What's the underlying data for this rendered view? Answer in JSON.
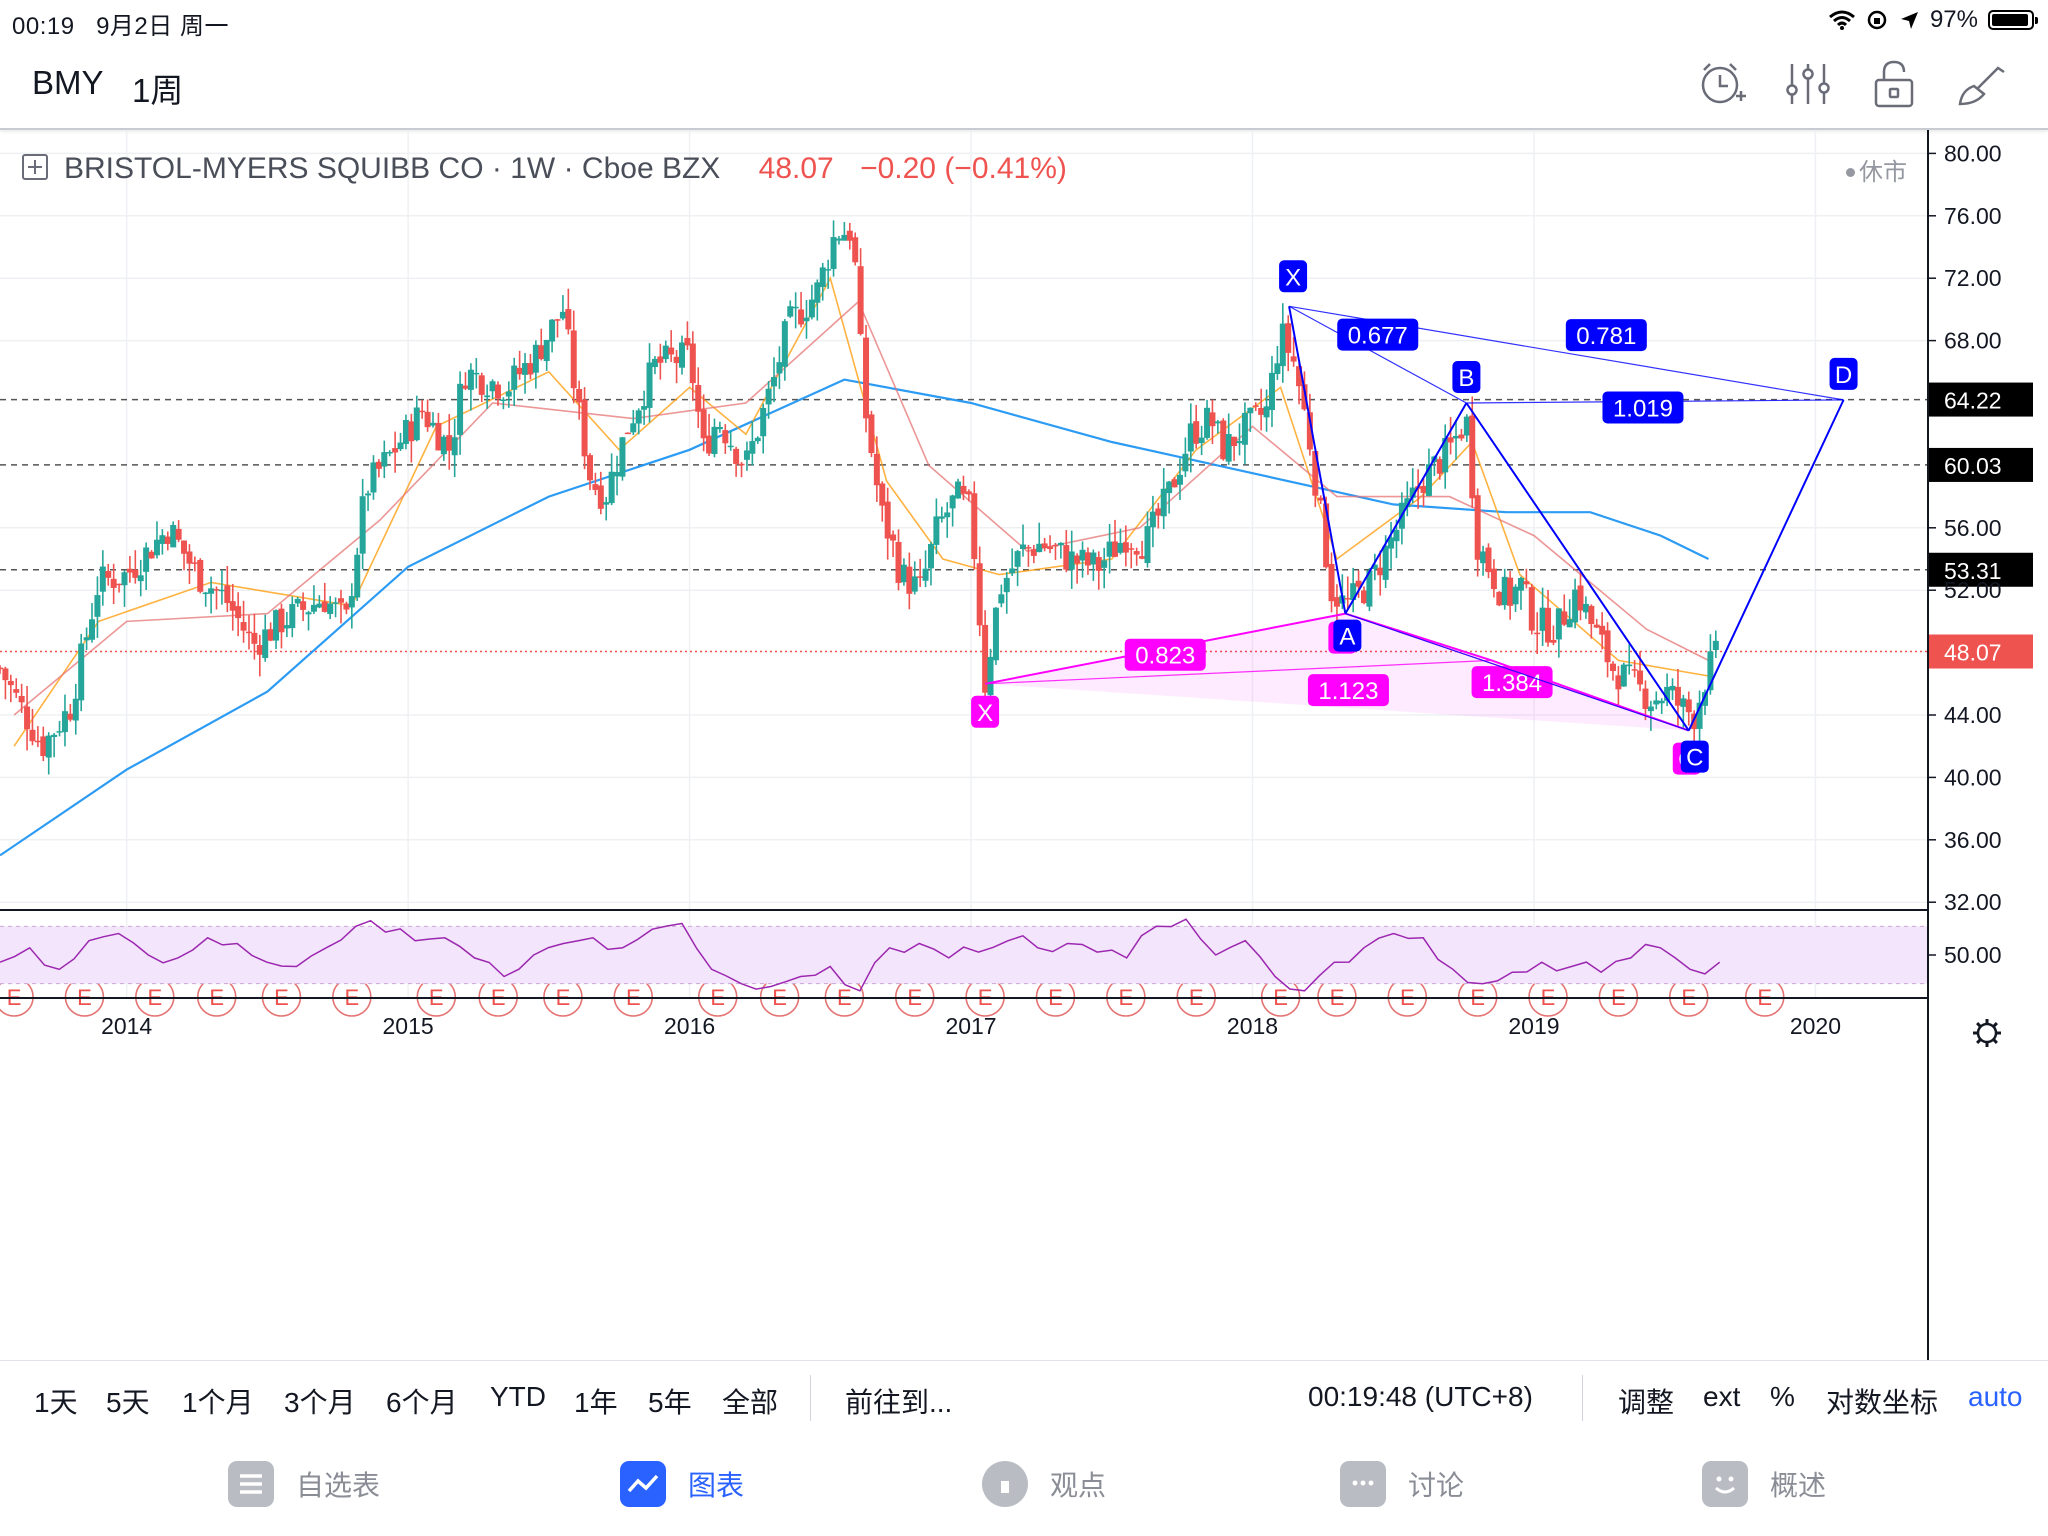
{
  "status_bar": {
    "time": "00:19",
    "date": "9月2日 周一",
    "battery": "97%"
  },
  "toolbar": {
    "symbol": "BMY",
    "interval": "1周",
    "icons": [
      "alarm-add-icon",
      "indicators-icon",
      "lock-icon",
      "drawing-brush-icon"
    ]
  },
  "legend": {
    "name": "BRISTOL-MYERS SQUIBB CO",
    "interval": "1W",
    "exchange": "Cboe BZX",
    "separator": "·",
    "last_price": "48.07",
    "change": "−0.20 (−0.41%)",
    "market_status": "休市"
  },
  "colors": {
    "up": "#26a69a",
    "down": "#ef5350",
    "pattern_xabcd_1": "#ff00ff",
    "pattern_xabcd_2": "#0000ff",
    "ma_long": "#2196f3",
    "ma_short": "#ff9800",
    "rsi": "#9c27b0",
    "rsi_band": "#f3e5fb"
  },
  "chart_data": {
    "type": "candlestick",
    "symbol": "BMY",
    "interval": "1W",
    "y_axis_labels": [
      "80.00",
      "76.00",
      "72.00",
      "68.00",
      "64.22",
      "60.03",
      "56.00",
      "53.31",
      "52.00",
      "48.07",
      "44.00",
      "40.00",
      "36.00",
      "32.00"
    ],
    "y_range": [
      31.5,
      81.5
    ],
    "x_axis_labels": [
      "2014",
      "2015",
      "2016",
      "2017",
      "2018",
      "2019",
      "2020"
    ],
    "x_range": [
      2013.55,
      2020.4
    ],
    "price_lines": [
      {
        "value": 64.22,
        "label": "64.22",
        "style": "dashed-black"
      },
      {
        "value": 60.03,
        "label": "60.03",
        "style": "dashed-black"
      },
      {
        "value": 53.31,
        "label": "53.31",
        "style": "dashed-black"
      },
      {
        "value": 48.07,
        "label": "48.07",
        "style": "last-price-red"
      }
    ],
    "price_path": [
      [
        2013.55,
        47.0
      ],
      [
        2013.7,
        42.0
      ],
      [
        2013.8,
        44.5
      ],
      [
        2013.9,
        52.5
      ],
      [
        2014.0,
        53.0
      ],
      [
        2014.15,
        56.0
      ],
      [
        2014.25,
        53.0
      ],
      [
        2014.35,
        51.5
      ],
      [
        2014.45,
        48.5
      ],
      [
        2014.55,
        50.0
      ],
      [
        2014.7,
        51.5
      ],
      [
        2014.78,
        50.0
      ],
      [
        2014.85,
        58.5
      ],
      [
        2014.95,
        61.0
      ],
      [
        2015.05,
        63.5
      ],
      [
        2015.15,
        61.0
      ],
      [
        2015.2,
        66.0
      ],
      [
        2015.35,
        65.0
      ],
      [
        2015.45,
        67.0
      ],
      [
        2015.55,
        70.0
      ],
      [
        2015.6,
        64.0
      ],
      [
        2015.65,
        59.0
      ],
      [
        2015.7,
        58.0
      ],
      [
        2015.78,
        62.5
      ],
      [
        2015.88,
        66.5
      ],
      [
        2016.0,
        67.0
      ],
      [
        2016.05,
        61.0
      ],
      [
        2016.1,
        63.0
      ],
      [
        2016.2,
        60.0
      ],
      [
        2016.3,
        65.5
      ],
      [
        2016.35,
        69.0
      ],
      [
        2016.45,
        71.0
      ],
      [
        2016.52,
        75.0
      ],
      [
        2016.58,
        75.0
      ],
      [
        2016.62,
        64.0
      ],
      [
        2016.68,
        57.0
      ],
      [
        2016.72,
        55.0
      ],
      [
        2016.75,
        53.0
      ],
      [
        2016.82,
        52.0
      ],
      [
        2016.88,
        56.0
      ],
      [
        2016.95,
        58.0
      ],
      [
        2017.0,
        57.0
      ],
      [
        2017.05,
        46.0
      ],
      [
        2017.1,
        52.0
      ],
      [
        2017.18,
        54.5
      ],
      [
        2017.25,
        55.0
      ],
      [
        2017.35,
        54.0
      ],
      [
        2017.45,
        53.5
      ],
      [
        2017.55,
        55.5
      ],
      [
        2017.62,
        55.0
      ],
      [
        2017.7,
        58.0
      ],
      [
        2017.78,
        62.0
      ],
      [
        2017.85,
        63.0
      ],
      [
        2017.9,
        61.0
      ],
      [
        2017.95,
        62.0
      ],
      [
        2018.05,
        63.5
      ],
      [
        2018.1,
        68.5
      ],
      [
        2018.15,
        66.5
      ],
      [
        2018.2,
        62.0
      ],
      [
        2018.28,
        52.0
      ],
      [
        2018.33,
        51.0
      ],
      [
        2018.42,
        52.5
      ],
      [
        2018.5,
        55.5
      ],
      [
        2018.6,
        59.0
      ],
      [
        2018.7,
        61.0
      ],
      [
        2018.76,
        63.0
      ],
      [
        2018.8,
        55.0
      ],
      [
        2018.88,
        52.0
      ],
      [
        2018.92,
        51.5
      ],
      [
        2018.95,
        52.5
      ],
      [
        2019.0,
        50.0
      ],
      [
        2019.08,
        49.5
      ],
      [
        2019.15,
        52.0
      ],
      [
        2019.2,
        50.0
      ],
      [
        2019.28,
        47.0
      ],
      [
        2019.35,
        46.0
      ],
      [
        2019.42,
        45.0
      ],
      [
        2019.48,
        45.5
      ],
      [
        2019.52,
        44.5
      ],
      [
        2019.57,
        44.0
      ],
      [
        2019.62,
        47.0
      ],
      [
        2019.66,
        48.07
      ]
    ],
    "moving_averages": [
      {
        "name": "MA long",
        "color": "#2196f3",
        "points": [
          [
            2013.55,
            35.0
          ],
          [
            2014.0,
            40.5
          ],
          [
            2014.5,
            45.5
          ],
          [
            2015.0,
            53.5
          ],
          [
            2015.5,
            58.0
          ],
          [
            2016.0,
            61.0
          ],
          [
            2016.55,
            65.5
          ],
          [
            2017.0,
            64.0
          ],
          [
            2017.5,
            61.5
          ],
          [
            2018.0,
            59.5
          ],
          [
            2018.5,
            57.5
          ],
          [
            2018.9,
            57.0
          ],
          [
            2019.2,
            57.0
          ],
          [
            2019.45,
            55.5
          ],
          [
            2019.62,
            54.0
          ]
        ]
      },
      {
        "name": "MA short",
        "color": "#ff9800",
        "points": [
          [
            2013.6,
            42.0
          ],
          [
            2013.9,
            50.0
          ],
          [
            2014.3,
            52.5
          ],
          [
            2014.8,
            51.0
          ],
          [
            2015.1,
            62.5
          ],
          [
            2015.5,
            66.0
          ],
          [
            2015.75,
            61.0
          ],
          [
            2016.0,
            65.0
          ],
          [
            2016.2,
            62.0
          ],
          [
            2016.5,
            72.0
          ],
          [
            2016.7,
            59.0
          ],
          [
            2016.9,
            54.0
          ],
          [
            2017.1,
            53.0
          ],
          [
            2017.5,
            54.0
          ],
          [
            2017.8,
            61.0
          ],
          [
            2018.1,
            65.0
          ],
          [
            2018.3,
            54.0
          ],
          [
            2018.6,
            58.0
          ],
          [
            2018.78,
            61.5
          ],
          [
            2018.95,
            53.0
          ],
          [
            2019.3,
            47.5
          ],
          [
            2019.62,
            46.5
          ]
        ]
      },
      {
        "name": "MA mid",
        "color": "#e57373",
        "points": [
          [
            2013.6,
            44.0
          ],
          [
            2014.0,
            50.0
          ],
          [
            2014.5,
            50.5
          ],
          [
            2014.9,
            56.5
          ],
          [
            2015.3,
            64.0
          ],
          [
            2015.8,
            63.0
          ],
          [
            2016.2,
            64.0
          ],
          [
            2016.6,
            70.5
          ],
          [
            2016.85,
            60.0
          ],
          [
            2017.2,
            54.5
          ],
          [
            2017.6,
            56.0
          ],
          [
            2018.0,
            62.5
          ],
          [
            2018.3,
            58.0
          ],
          [
            2018.7,
            58.0
          ],
          [
            2019.0,
            55.5
          ],
          [
            2019.4,
            49.5
          ],
          [
            2019.62,
            47.5
          ]
        ]
      }
    ],
    "harmonic_patterns": [
      {
        "color": "#ff00ff",
        "points": {
          "X": [
            2017.05,
            46.0
          ],
          "A": [
            2018.33,
            50.5
          ],
          "B": [
            2018.85,
            47.5
          ],
          "C": [
            2019.55,
            43.0
          ]
        },
        "labels": {
          "X": "X",
          "A": "A",
          "B": "B",
          "C": "C"
        },
        "ratios": [
          "0.823",
          "1.123",
          "1.384"
        ]
      },
      {
        "color": "#0000ff",
        "points": {
          "X": [
            2018.13,
            70.2
          ],
          "A": [
            2018.33,
            50.5
          ],
          "B": [
            2018.76,
            64.0
          ],
          "C": [
            2019.55,
            43.0
          ],
          "D": [
            2020.1,
            64.2
          ]
        },
        "labels": {
          "X": "X",
          "A": "A",
          "B": "B",
          "C": "C",
          "D": "D"
        },
        "ratios": [
          "0.677",
          "0.781",
          "1.019"
        ]
      }
    ],
    "earnings_label": "E",
    "earnings_markers": [
      2013.6,
      2013.85,
      2014.1,
      2014.32,
      2014.55,
      2014.8,
      2015.1,
      2015.32,
      2015.55,
      2015.8,
      2016.1,
      2016.32,
      2016.55,
      2016.8,
      2017.05,
      2017.3,
      2017.55,
      2017.8,
      2018.1,
      2018.3,
      2018.55,
      2018.8,
      2019.05,
      2019.3,
      2019.55,
      2019.82
    ],
    "rsi": {
      "label": "50.00",
      "band": [
        30,
        70
      ],
      "range": [
        20,
        80
      ],
      "values": [
        45,
        55,
        40,
        60,
        65,
        50,
        48,
        62,
        58,
        45,
        42,
        55,
        70,
        66,
        60,
        62,
        48,
        35,
        50,
        58,
        62,
        55,
        68,
        72,
        40,
        30,
        28,
        35,
        42,
        25,
        55,
        58,
        48,
        52,
        60,
        55,
        58,
        52,
        48,
        70,
        75,
        50,
        60,
        35,
        25,
        45,
        55,
        65,
        62,
        40,
        30,
        38,
        45,
        42,
        38,
        48,
        55,
        40,
        45
      ]
    }
  },
  "range_bar": {
    "buttons": [
      "1天",
      "5天",
      "1个月",
      "3个月",
      "6个月",
      "YTD",
      "1年",
      "5年",
      "全部"
    ],
    "goto": "前往到...",
    "clock": "00:19:48 (UTC+8)",
    "options": [
      "调整",
      "ext",
      "%",
      "对数坐标"
    ],
    "auto": "auto"
  },
  "tab_bar": {
    "tabs": [
      {
        "label": "自选表",
        "icon": "list-icon",
        "active": false
      },
      {
        "label": "图表",
        "icon": "chart-icon",
        "active": true
      },
      {
        "label": "观点",
        "icon": "lightbulb-icon",
        "active": false
      },
      {
        "label": "讨论",
        "icon": "chat-icon",
        "active": false
      },
      {
        "label": "概述",
        "icon": "smiley-icon",
        "active": false
      }
    ]
  }
}
